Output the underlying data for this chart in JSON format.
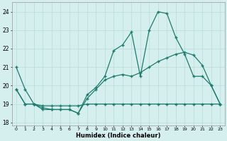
{
  "xlabel": "Humidex (Indice chaleur)",
  "bg_color": "#d5efee",
  "grid_color": "#b8dbd9",
  "line_color": "#1e7b6e",
  "xlim": [
    -0.5,
    23.5
  ],
  "ylim": [
    17.85,
    24.5
  ],
  "yticks": [
    18,
    19,
    20,
    21,
    22,
    23,
    24
  ],
  "xticks": [
    0,
    1,
    2,
    3,
    4,
    5,
    6,
    7,
    8,
    9,
    10,
    11,
    12,
    13,
    14,
    15,
    16,
    17,
    18,
    19,
    20,
    21,
    22,
    23
  ],
  "line1_x": [
    0,
    1,
    2,
    3,
    4,
    5,
    6,
    7,
    8,
    9,
    10,
    11,
    12,
    13,
    14,
    15,
    16,
    17,
    18,
    19,
    20,
    21,
    22,
    23
  ],
  "line1_y": [
    21.0,
    19.8,
    19.0,
    18.8,
    18.7,
    18.7,
    18.7,
    18.5,
    19.5,
    19.9,
    20.5,
    21.9,
    22.2,
    22.9,
    20.5,
    23.0,
    24.0,
    23.9,
    22.6,
    21.7,
    20.5,
    20.5,
    20.0,
    19.0
  ],
  "line2_x": [
    0,
    1,
    2,
    3,
    4,
    5,
    6,
    7,
    8,
    9,
    10,
    11,
    12,
    13,
    14,
    15,
    16,
    17,
    18,
    19,
    20,
    21,
    22,
    23
  ],
  "line2_y": [
    19.8,
    19.0,
    19.0,
    18.7,
    18.7,
    18.7,
    18.7,
    18.5,
    19.3,
    19.8,
    20.3,
    20.5,
    20.6,
    20.5,
    20.7,
    21.0,
    21.3,
    21.5,
    21.7,
    21.8,
    21.65,
    21.1,
    20.0,
    19.0
  ],
  "line3_x": [
    0,
    1,
    2,
    3,
    4,
    5,
    6,
    7,
    8,
    9,
    10,
    11,
    12,
    13,
    14,
    15,
    16,
    17,
    18,
    19,
    20,
    21,
    22,
    23
  ],
  "line3_y": [
    19.8,
    19.0,
    19.0,
    18.9,
    18.9,
    18.9,
    18.9,
    18.9,
    19.0,
    19.0,
    19.0,
    19.0,
    19.0,
    19.0,
    19.0,
    19.0,
    19.0,
    19.0,
    19.0,
    19.0,
    19.0,
    19.0,
    19.0,
    19.0
  ]
}
